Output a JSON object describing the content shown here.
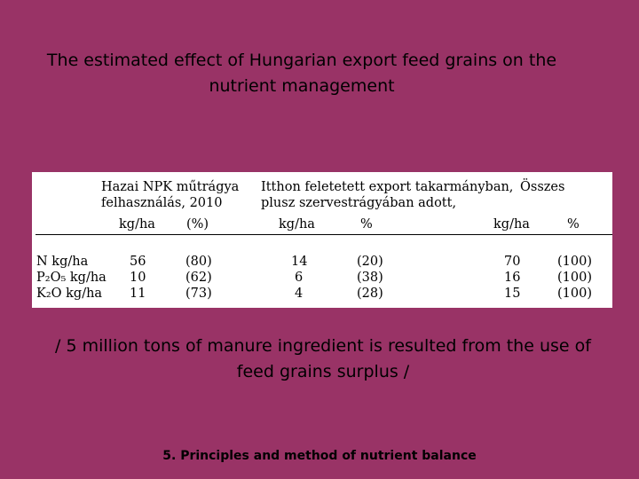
{
  "slide": {
    "title": "The estimated effect of Hungarian export feed grains on the nutrient management",
    "note": "/ 5 million tons of manure ingredient is resulted from the use of feed grains surplus /",
    "footer": "5. Principles and method of nutrient balance",
    "background_color": "#993366"
  },
  "table": {
    "group1_line1": "Hazai NPK műtrágya",
    "group1_line2": "felhasználás, 2010",
    "group2_line1": "Itthon feletetett export takarmányban,",
    "group2_line2": "plusz szervestrágyában adott,",
    "group3_line1": "Összes",
    "col_headers": [
      "kg/ha",
      "(%)",
      "kg/ha",
      "%",
      "kg/ha",
      "%"
    ],
    "rows": [
      {
        "label": "N kg/ha",
        "v1": "56",
        "p1": "(80)",
        "v2": "14",
        "p2": "(20)",
        "v3": "70",
        "p3": "(100)"
      },
      {
        "label": "P₂O₅ kg/ha",
        "v1": "10",
        "p1": "(62)",
        "v2": "6",
        "p2": "(38)",
        "v3": "16",
        "p3": "(100)"
      },
      {
        "label": "K₂O kg/ha",
        "v1": "11",
        "p1": "(73)",
        "v2": "4",
        "p2": "(28)",
        "v3": "15",
        "p3": "(100)"
      }
    ]
  }
}
